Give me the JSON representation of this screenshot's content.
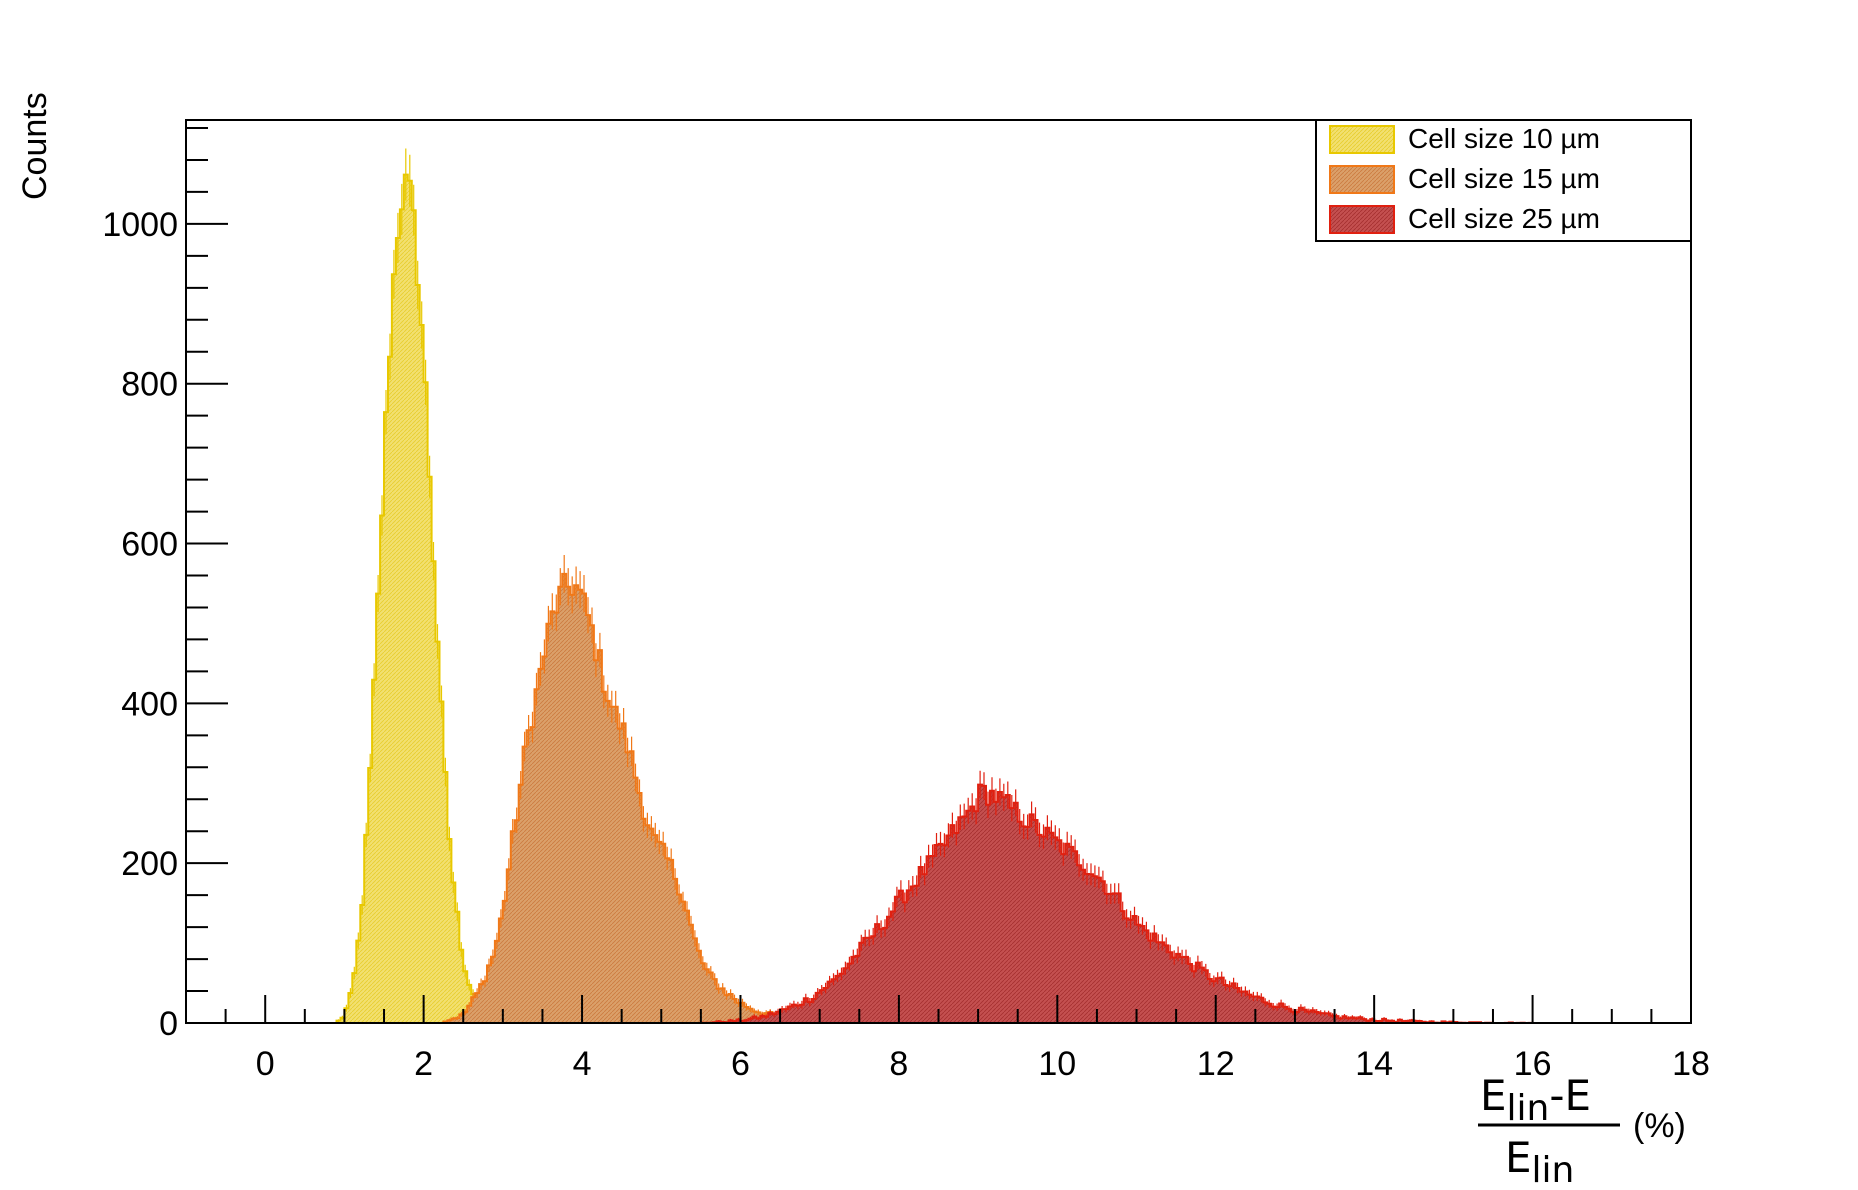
{
  "chart_data": {
    "type": "histogram",
    "title": "",
    "ylabel": "Counts",
    "xlabel": {
      "numerator": "E",
      "numerator_sub": "lin",
      "numerator_rest": "-E",
      "denominator": "E",
      "denominator_sub": "lin",
      "unit": "(%)"
    },
    "xlim": [
      -1,
      18
    ],
    "ylim": [
      0,
      1130
    ],
    "x_ticks": [
      0,
      2,
      4,
      6,
      8,
      10,
      12,
      14,
      16,
      18
    ],
    "y_ticks": [
      0,
      200,
      400,
      600,
      800,
      1000
    ],
    "grid": false,
    "legend_position": "top-right",
    "bin_width": 0.05,
    "series": [
      {
        "name": "Cell size 10 µm",
        "color": "#e8c800",
        "fill": "#f2e070",
        "peak_x": 1.75,
        "peak_counts": [
          [
            0.9,
            0
          ],
          [
            1.0,
            10
          ],
          [
            1.1,
            40
          ],
          [
            1.2,
            120
          ],
          [
            1.3,
            260
          ],
          [
            1.4,
            470
          ],
          [
            1.5,
            700
          ],
          [
            1.6,
            900
          ],
          [
            1.7,
            1030
          ],
          [
            1.8,
            1050
          ],
          [
            1.9,
            980
          ],
          [
            2.0,
            840
          ],
          [
            2.1,
            640
          ],
          [
            2.2,
            430
          ],
          [
            2.3,
            260
          ],
          [
            2.4,
            150
          ],
          [
            2.5,
            80
          ],
          [
            2.6,
            40
          ],
          [
            2.8,
            20
          ],
          [
            3.0,
            10
          ],
          [
            3.5,
            3
          ],
          [
            4.0,
            0
          ]
        ]
      },
      {
        "name": "Cell size 15 µm",
        "color": "#f07818",
        "fill": "#dba06a",
        "peak_x": 3.85,
        "peak_counts": [
          [
            2.2,
            0
          ],
          [
            2.5,
            10
          ],
          [
            2.7,
            40
          ],
          [
            2.9,
            90
          ],
          [
            3.0,
            140
          ],
          [
            3.1,
            210
          ],
          [
            3.2,
            280
          ],
          [
            3.3,
            350
          ],
          [
            3.4,
            400
          ],
          [
            3.5,
            450
          ],
          [
            3.6,
            500
          ],
          [
            3.7,
            530
          ],
          [
            3.8,
            545
          ],
          [
            3.9,
            550
          ],
          [
            4.0,
            530
          ],
          [
            4.1,
            500
          ],
          [
            4.2,
            460
          ],
          [
            4.3,
            420
          ],
          [
            4.4,
            390
          ],
          [
            4.5,
            370
          ],
          [
            4.6,
            340
          ],
          [
            4.7,
            300
          ],
          [
            4.8,
            260
          ],
          [
            4.9,
            230
          ],
          [
            5.0,
            215
          ],
          [
            5.1,
            200
          ],
          [
            5.2,
            180
          ],
          [
            5.3,
            150
          ],
          [
            5.4,
            110
          ],
          [
            5.5,
            80
          ],
          [
            5.6,
            60
          ],
          [
            5.8,
            40
          ],
          [
            6.0,
            25
          ],
          [
            6.2,
            15
          ],
          [
            6.5,
            8
          ],
          [
            7.0,
            2
          ],
          [
            7.3,
            0
          ]
        ]
      },
      {
        "name": "Cell size 25 µm",
        "color": "#e02010",
        "fill": "#c04848",
        "peak_x": 9.05,
        "peak_counts": [
          [
            5.5,
            0
          ],
          [
            6.0,
            3
          ],
          [
            6.3,
            8
          ],
          [
            6.6,
            18
          ],
          [
            6.9,
            32
          ],
          [
            7.2,
            55
          ],
          [
            7.5,
            90
          ],
          [
            7.8,
            125
          ],
          [
            8.1,
            165
          ],
          [
            8.4,
            200
          ],
          [
            8.7,
            240
          ],
          [
            8.9,
            265
          ],
          [
            9.05,
            290
          ],
          [
            9.2,
            285
          ],
          [
            9.4,
            270
          ],
          [
            9.6,
            255
          ],
          [
            9.8,
            240
          ],
          [
            10.0,
            225
          ],
          [
            10.2,
            210
          ],
          [
            10.4,
            195
          ],
          [
            10.6,
            175
          ],
          [
            10.8,
            150
          ],
          [
            11.0,
            125
          ],
          [
            11.3,
            100
          ],
          [
            11.6,
            80
          ],
          [
            11.9,
            60
          ],
          [
            12.2,
            45
          ],
          [
            12.5,
            32
          ],
          [
            12.8,
            22
          ],
          [
            13.1,
            15
          ],
          [
            13.5,
            8
          ],
          [
            14.0,
            4
          ],
          [
            14.5,
            2
          ],
          [
            15.0,
            1
          ],
          [
            16.0,
            0
          ],
          [
            17.5,
            0
          ]
        ]
      }
    ]
  }
}
